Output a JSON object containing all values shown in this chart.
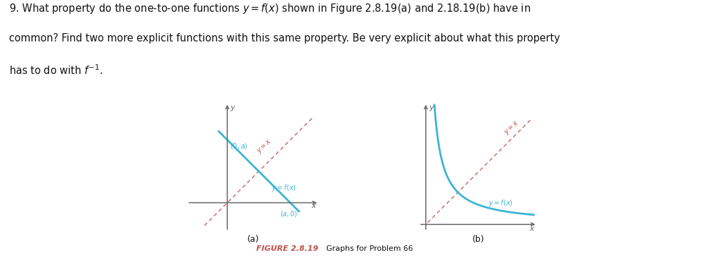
{
  "question_line1": "9. What property do the one-to-one functions $y = f(x)$ shown in Figure 2.8.19(a) and 2.18.19(b) have in",
  "question_line2": "common? Find two more explicit functions with this same property. Be very explicit about what this property",
  "question_line3": "has to do with $f^{-1}$.",
  "fig_caption_bold": "FIGURE 2.8.19",
  "fig_caption_plain": "  Graphs for Problem 66",
  "label_a": "(a)",
  "label_b": "(b)",
  "curve_color": "#3ab4d4",
  "yx_line_color": "#c0504d",
  "axis_color": "#666666",
  "text_color": "#111111",
  "caption_color": "#c0504d",
  "bg_color": "#ffffff",
  "a_val": 2.2,
  "graph_a_xlim": [
    -1.4,
    3.2
  ],
  "graph_a_ylim": [
    -1.0,
    3.5
  ],
  "graph_b_xlim": [
    -0.2,
    3.2
  ],
  "graph_b_ylim": [
    -0.2,
    3.5
  ]
}
